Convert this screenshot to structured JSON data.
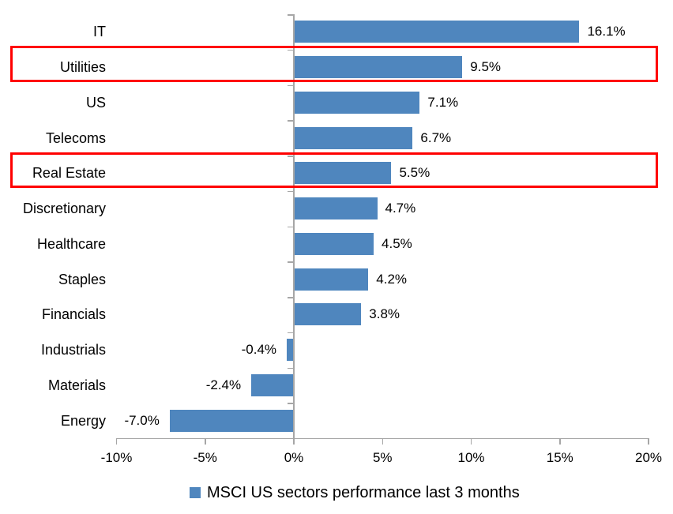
{
  "chart_data": {
    "type": "bar",
    "orientation": "horizontal",
    "title": "",
    "categories": [
      "IT",
      "Utilities",
      "US",
      "Telecoms",
      "Real Estate",
      "Discretionary",
      "Healthcare",
      "Staples",
      "Financials",
      "Industrials",
      "Materials",
      "Energy"
    ],
    "values": [
      16.1,
      9.5,
      7.1,
      6.7,
      5.5,
      4.7,
      4.5,
      4.2,
      3.8,
      -0.4,
      -2.4,
      -7.0
    ],
    "data_labels": [
      "16.1%",
      "9.5%",
      "7.1%",
      "6.7%",
      "5.5%",
      "4.7%",
      "4.5%",
      "4.2%",
      "3.8%",
      "-0.4%",
      "-2.4%",
      "-7.0%"
    ],
    "x_ticks": [
      -10,
      -5,
      0,
      5,
      10,
      15,
      20
    ],
    "x_tick_labels": [
      "-10%",
      "-5%",
      "0%",
      "5%",
      "10%",
      "15%",
      "20%"
    ],
    "xlim": [
      -10,
      20
    ],
    "grid": false,
    "legend": "MSCI US sectors performance last 3 months",
    "legend_position": "bottom",
    "highlighted_categories": [
      "Utilities",
      "Real Estate"
    ],
    "colors": {
      "bar": "#4f86be",
      "highlight_box": "#ff0000",
      "axis": "#a6a6a6",
      "text": "#000000",
      "background": "#ffffff"
    }
  }
}
